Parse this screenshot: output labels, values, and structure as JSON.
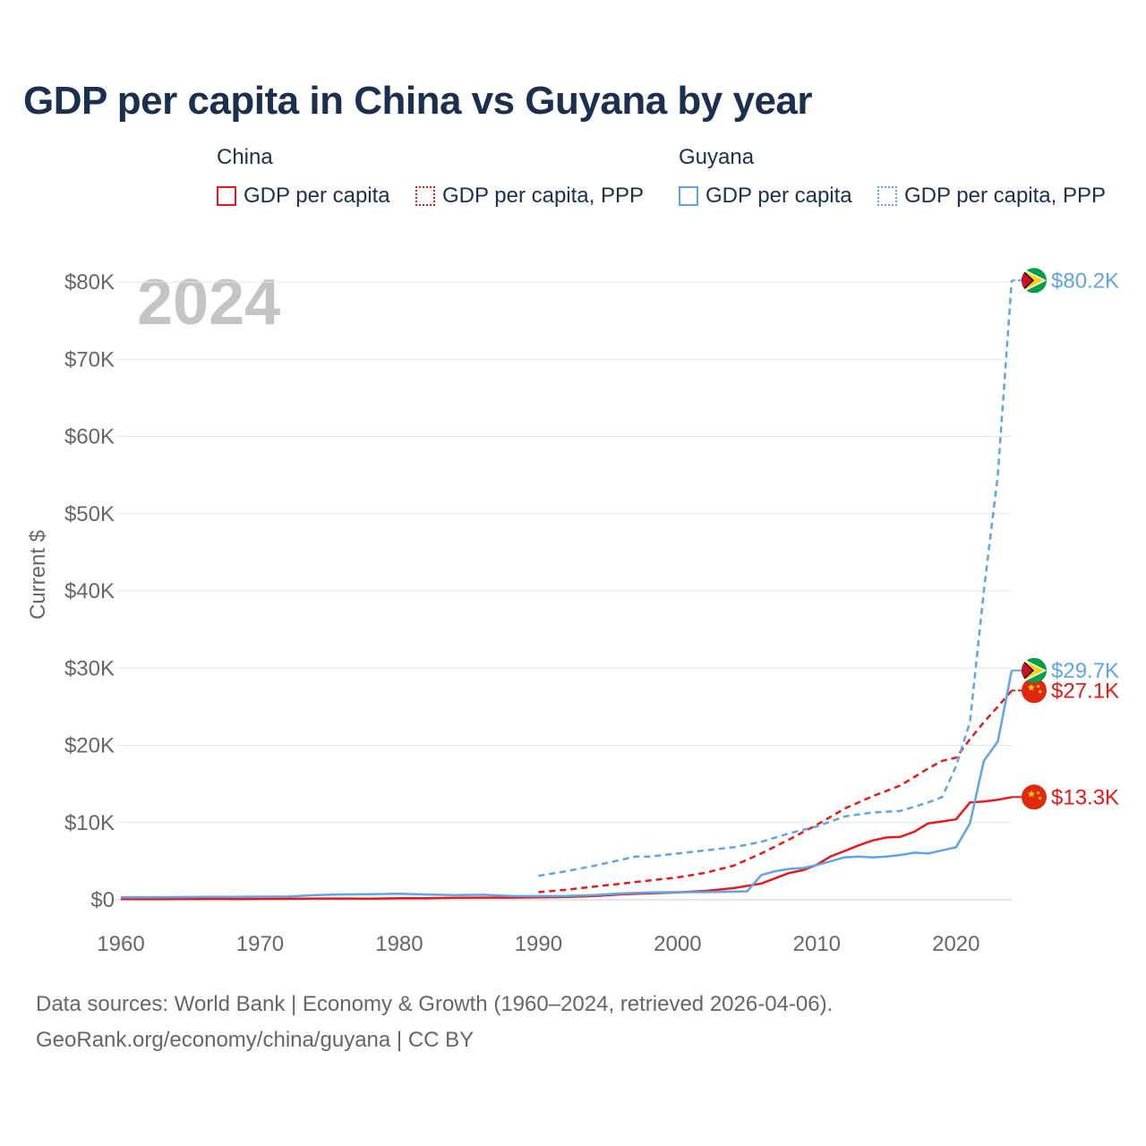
{
  "title": "GDP per capita in China vs Guyana by year",
  "legend": {
    "groups": [
      {
        "name": "China",
        "items": [
          "GDP per capita",
          "GDP per capita, PPP"
        ],
        "color": "#e8191a"
      },
      {
        "name": "Guyana",
        "items": [
          "GDP per capita",
          "GDP per capita, PPP"
        ],
        "color": "#5ea4e6"
      }
    ]
  },
  "year_watermark": "2024",
  "source_line1": "Data sources: World Bank | Economy & Growth (1960–2024, retrieved 2026-04-06).",
  "source_line2": "GeoRank.org/economy/china/guyana | CC BY",
  "chart_data": {
    "type": "line",
    "title": "GDP per capita in China vs Guyana by year",
    "xlabel": "",
    "ylabel": "Current $",
    "xlim": [
      1960,
      2024
    ],
    "ylim": [
      0,
      80000
    ],
    "x_ticks": [
      1960,
      1970,
      1980,
      1990,
      2000,
      2010,
      2020
    ],
    "y_ticks": [
      0,
      10000,
      20000,
      30000,
      40000,
      50000,
      60000,
      70000,
      80000
    ],
    "y_tick_labels": [
      "$0",
      "$10K",
      "$20K",
      "$30K",
      "$40K",
      "$50K",
      "$60K",
      "$70K",
      "$80K"
    ],
    "grid": true,
    "series": [
      {
        "name": "China GDP per capita",
        "color": "#e8191a",
        "style": "solid",
        "x": [
          1960,
          1962,
          1964,
          1966,
          1968,
          1970,
          1972,
          1974,
          1976,
          1978,
          1980,
          1982,
          1984,
          1986,
          1988,
          1990,
          1992,
          1994,
          1996,
          1998,
          2000,
          2002,
          2004,
          2006,
          2008,
          2009,
          2010,
          2011,
          2012,
          2013,
          2014,
          2015,
          2016,
          2017,
          2018,
          2019,
          2020,
          2021,
          2022,
          2023,
          2024
        ],
        "values": [
          90,
          71,
          85,
          102,
          91,
          113,
          132,
          157,
          165,
          156,
          195,
          203,
          251,
          282,
          284,
          318,
          366,
          473,
          709,
          829,
          959,
          1149,
          1509,
          2099,
          3468,
          3832,
          4550,
          5618,
          6317,
          7051,
          7679,
          8067,
          8147,
          8817,
          9905,
          10144,
          10409,
          12618,
          12720,
          12951,
          13300
        ],
        "end_label": "$13.3K"
      },
      {
        "name": "China GDP per capita, PPP",
        "color": "#e8191a",
        "style": "dashed",
        "x": [
          1990,
          1992,
          1994,
          1996,
          1998,
          2000,
          2002,
          2004,
          2006,
          2008,
          2010,
          2012,
          2014,
          2016,
          2018,
          2019,
          2020,
          2021,
          2022,
          2023,
          2024
        ],
        "values": [
          980,
          1300,
          1700,
          2100,
          2500,
          2900,
          3500,
          4400,
          6000,
          7800,
          9700,
          11800,
          13400,
          14800,
          17000,
          18000,
          18400,
          20800,
          23000,
          25000,
          27100
        ],
        "end_label": "$27.1K"
      },
      {
        "name": "Guyana GDP per capita",
        "color": "#5ea4e6",
        "style": "solid",
        "x": [
          1960,
          1962,
          1964,
          1966,
          1968,
          1970,
          1972,
          1974,
          1976,
          1978,
          1980,
          1982,
          1984,
          1986,
          1988,
          1990,
          1992,
          1994,
          1996,
          1998,
          2000,
          2002,
          2004,
          2005,
          2006,
          2007,
          2008,
          2009,
          2010,
          2011,
          2012,
          2013,
          2014,
          2015,
          2016,
          2017,
          2018,
          2019,
          2020,
          2021,
          2022,
          2023,
          2024
        ],
        "values": [
          320,
          330,
          350,
          370,
          380,
          400,
          420,
          620,
          700,
          720,
          780,
          680,
          600,
          650,
          500,
          470,
          500,
          620,
          820,
          950,
          990,
          1000,
          1050,
          1100,
          3200,
          3700,
          4000,
          4100,
          4500,
          5000,
          5500,
          5600,
          5500,
          5600,
          5800,
          6100,
          6000,
          6400,
          6800,
          9900,
          18000,
          20500,
          29700
        ],
        "end_label": "$29.7K"
      },
      {
        "name": "Guyana GDP per capita, PPP",
        "color": "#5ea4e6",
        "style": "dashed",
        "x": [
          1990,
          1992,
          1994,
          1996,
          1997,
          1998,
          2000,
          2002,
          2004,
          2006,
          2008,
          2010,
          2012,
          2014,
          2016,
          2018,
          2019,
          2020,
          2021,
          2022,
          2023,
          2024
        ],
        "values": [
          3100,
          3700,
          4400,
          5200,
          5600,
          5600,
          6000,
          6400,
          6800,
          7500,
          8600,
          9500,
          10800,
          11300,
          11500,
          12600,
          13300,
          17300,
          23000,
          40000,
          55000,
          80200
        ],
        "end_label": "$80.2K"
      }
    ]
  }
}
